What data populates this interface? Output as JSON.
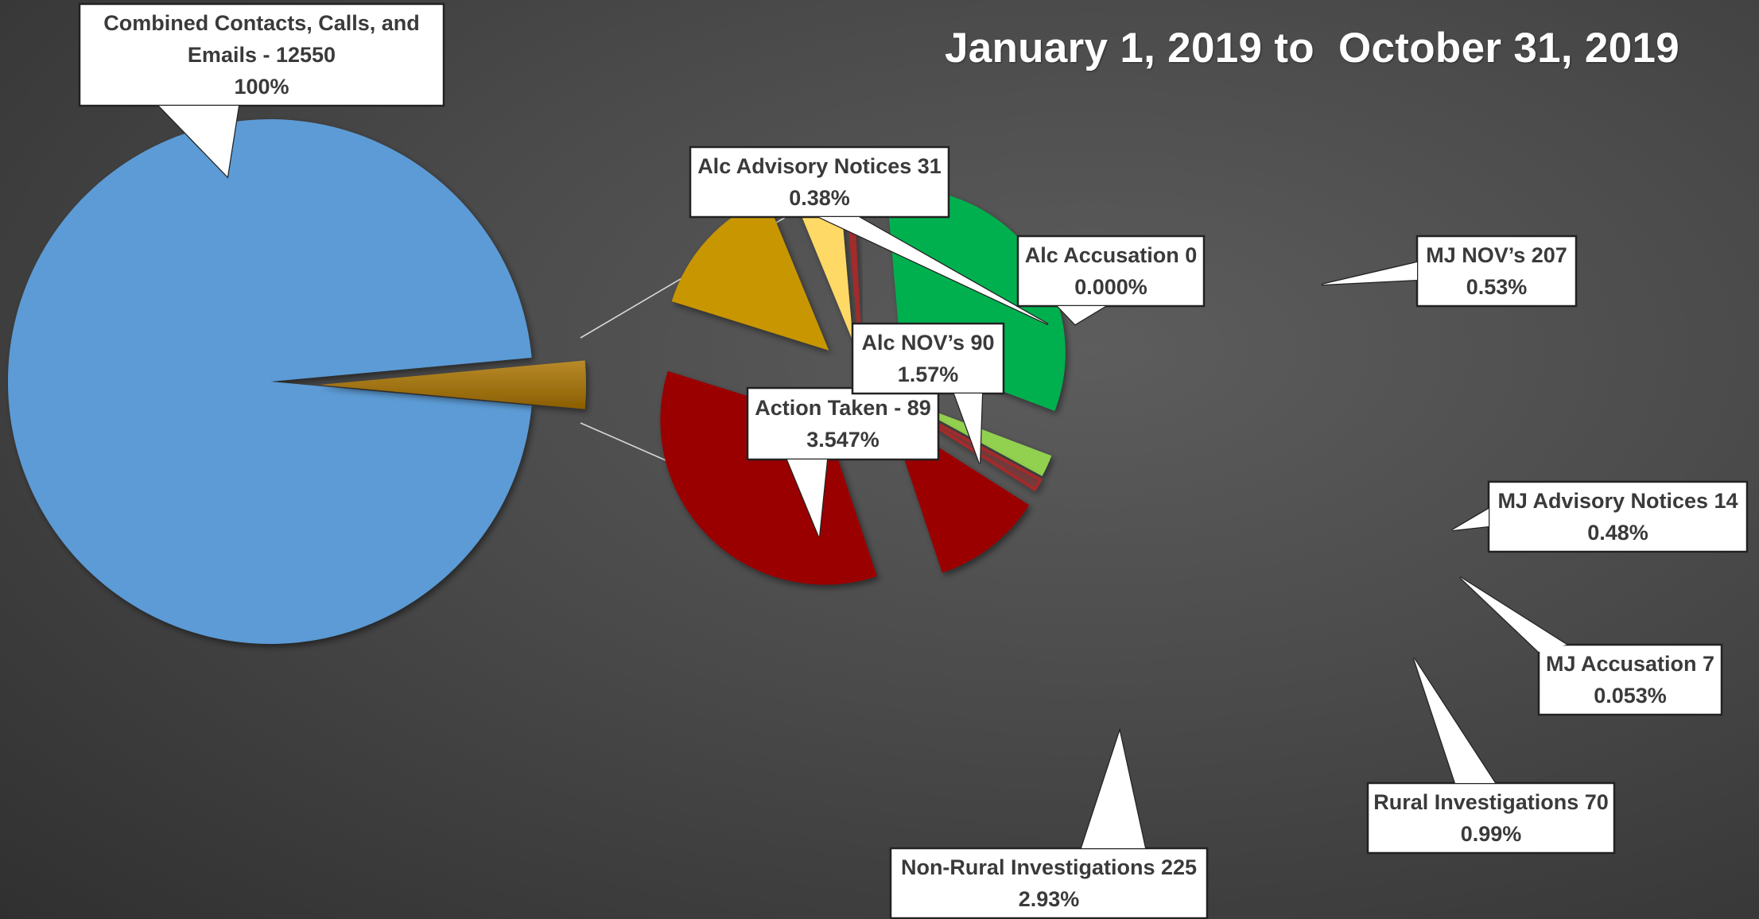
{
  "title": "January 1, 2019 to  October 31, 2019",
  "colors": {
    "combined": "#5b9bd5",
    "action_taken": "#9c6b00",
    "alc_nov": "#c89600",
    "alc_advisory": "#ffd966",
    "alc_accusation": "#a52a2a",
    "mj_nov": "#00b050",
    "mj_advisory": "#92d050",
    "mj_accusation": "#a52a2a",
    "rural": "#9a0000",
    "non_rural": "#9a0000"
  },
  "chart_data": {
    "type": "pie",
    "title": "January 1, 2019 to  October 31, 2019",
    "main_pie": {
      "slices": [
        {
          "label": "Combined Contacts, Calls, and Emails",
          "value": 12550,
          "percent": "100%"
        },
        {
          "label": "Action Taken",
          "value": 89,
          "percent": "3.547%"
        }
      ]
    },
    "breakdown_pie": {
      "slices": [
        {
          "label": "MJ NOV’s",
          "value": 207,
          "percent": "0.53%"
        },
        {
          "label": "MJ Advisory Notices",
          "value": 14,
          "percent": "0.48%"
        },
        {
          "label": "MJ Accusation",
          "value": 7,
          "percent": "0.053%"
        },
        {
          "label": "Rural Investigations",
          "value": 70,
          "percent": "0.99%"
        },
        {
          "label": "Non-Rural Investigations",
          "value": 225,
          "percent": "2.93%"
        },
        {
          "label": "Alc NOV’s",
          "value": 90,
          "percent": "1.57%"
        },
        {
          "label": "Alc Advisory Notices",
          "value": 31,
          "percent": "0.38%"
        },
        {
          "label": "Alc Accusation",
          "value": 0,
          "percent": "0.000%"
        }
      ]
    },
    "callouts": [
      {
        "key": "combined",
        "lines": [
          "Combined Contacts, Calls, and",
          "Emails - 12550",
          "100%"
        ]
      },
      {
        "key": "action_taken",
        "lines": [
          "Action Taken - 89",
          "3.547%"
        ]
      },
      {
        "key": "alc_nov",
        "lines": [
          "Alc NOV’s 90",
          "1.57%"
        ]
      },
      {
        "key": "alc_advisory",
        "lines": [
          "Alc Advisory Notices 31",
          "0.38%"
        ]
      },
      {
        "key": "alc_accusation",
        "lines": [
          "Alc Accusation 0",
          "0.000%"
        ]
      },
      {
        "key": "mj_nov",
        "lines": [
          "MJ NOV’s 207",
          "0.53%"
        ]
      },
      {
        "key": "mj_advisory",
        "lines": [
          "MJ Advisory Notices 14",
          "0.48%"
        ]
      },
      {
        "key": "mj_accusation",
        "lines": [
          "MJ Accusation 7",
          "0.053%"
        ]
      },
      {
        "key": "rural",
        "lines": [
          "Rural Investigations 70",
          "0.99%"
        ]
      },
      {
        "key": "non_rural",
        "lines": [
          "Non-Rural Investigations 225",
          "2.93%"
        ]
      }
    ]
  }
}
